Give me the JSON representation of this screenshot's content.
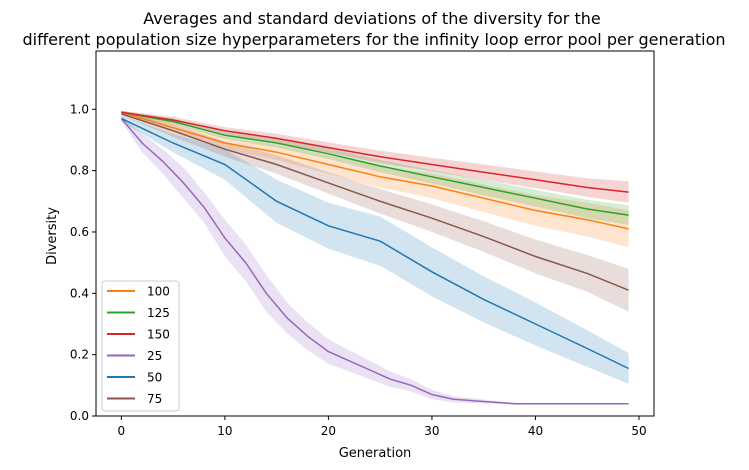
{
  "chart_data": {
    "type": "line",
    "title_line1": "Averages and standard deviations of the diversity for the",
    "title_line2": "different population size hyperparameters for the infinity loop error pool per generation",
    "xlabel": "Generation",
    "ylabel": "Diversity",
    "xlim": [
      -2.45,
      51.45
    ],
    "ylim": [
      0.0,
      1.19
    ],
    "xticks": [
      0,
      10,
      20,
      30,
      40,
      50
    ],
    "yticks": [
      0.0,
      0.2,
      0.4,
      0.6,
      0.8,
      1.0
    ],
    "ytick_labels": [
      "0.0",
      "0.2",
      "0.4",
      "0.6",
      "0.8",
      "1.0"
    ],
    "grid": false,
    "legend_position": "lower left",
    "shaded_band": "mean ± standard deviation",
    "series": [
      {
        "name": "100",
        "color": "#ff7f0e",
        "x": [
          0,
          5,
          10,
          15,
          20,
          25,
          30,
          35,
          40,
          45,
          49
        ],
        "mean": [
          0.99,
          0.94,
          0.89,
          0.86,
          0.82,
          0.78,
          0.75,
          0.71,
          0.67,
          0.64,
          0.61
        ],
        "std": [
          0.005,
          0.015,
          0.02,
          0.025,
          0.03,
          0.035,
          0.04,
          0.045,
          0.05,
          0.055,
          0.06
        ]
      },
      {
        "name": "125",
        "color": "#2ca02c",
        "x": [
          0,
          5,
          10,
          15,
          20,
          25,
          30,
          35,
          40,
          45,
          49
        ],
        "mean": [
          0.99,
          0.96,
          0.915,
          0.89,
          0.855,
          0.815,
          0.78,
          0.745,
          0.71,
          0.675,
          0.655
        ],
        "std": [
          0.005,
          0.01,
          0.012,
          0.015,
          0.017,
          0.02,
          0.022,
          0.025,
          0.027,
          0.03,
          0.032
        ]
      },
      {
        "name": "150",
        "color": "#d62728",
        "x": [
          0,
          5,
          10,
          15,
          20,
          25,
          30,
          35,
          40,
          45,
          49
        ],
        "mean": [
          0.99,
          0.965,
          0.93,
          0.905,
          0.875,
          0.845,
          0.82,
          0.795,
          0.77,
          0.745,
          0.73
        ],
        "std": [
          0.005,
          0.01,
          0.012,
          0.015,
          0.017,
          0.02,
          0.022,
          0.025,
          0.027,
          0.03,
          0.035
        ]
      },
      {
        "name": "25",
        "color": "#9467bd",
        "x": [
          0,
          2,
          4,
          6,
          8,
          10,
          12,
          14,
          16,
          18,
          20,
          22,
          24,
          26,
          28,
          30,
          32,
          34,
          36,
          38,
          40,
          45,
          49
        ],
        "mean": [
          0.97,
          0.89,
          0.83,
          0.76,
          0.68,
          0.58,
          0.5,
          0.4,
          0.32,
          0.26,
          0.21,
          0.18,
          0.15,
          0.12,
          0.1,
          0.07,
          0.055,
          0.05,
          0.045,
          0.04,
          0.04,
          0.04,
          0.04
        ],
        "std": [
          0.01,
          0.03,
          0.04,
          0.05,
          0.05,
          0.06,
          0.06,
          0.06,
          0.05,
          0.045,
          0.04,
          0.035,
          0.03,
          0.025,
          0.02,
          0.015,
          0.01,
          0.008,
          0.005,
          0.003,
          0.002,
          0.002,
          0.002
        ]
      },
      {
        "name": "50",
        "color": "#1f77b4",
        "x": [
          0,
          5,
          10,
          15,
          20,
          25,
          30,
          35,
          40,
          45,
          49
        ],
        "mean": [
          0.97,
          0.89,
          0.82,
          0.7,
          0.62,
          0.57,
          0.47,
          0.38,
          0.3,
          0.22,
          0.155
        ],
        "std": [
          0.01,
          0.03,
          0.05,
          0.07,
          0.075,
          0.08,
          0.08,
          0.075,
          0.07,
          0.06,
          0.05
        ]
      },
      {
        "name": "75",
        "color": "#8c564b",
        "x": [
          0,
          5,
          10,
          15,
          20,
          25,
          30,
          35,
          40,
          45,
          49
        ],
        "mean": [
          0.985,
          0.93,
          0.87,
          0.82,
          0.76,
          0.7,
          0.645,
          0.585,
          0.52,
          0.465,
          0.41
        ],
        "std": [
          0.005,
          0.02,
          0.025,
          0.03,
          0.035,
          0.04,
          0.045,
          0.05,
          0.055,
          0.06,
          0.07
        ]
      }
    ]
  }
}
